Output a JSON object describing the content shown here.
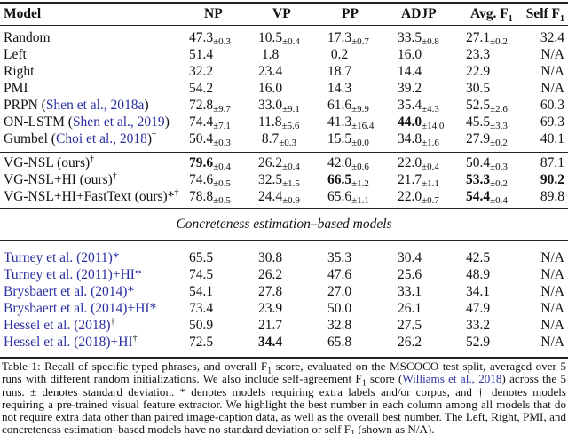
{
  "table": {
    "headers": [
      "Model",
      "NP",
      "VP",
      "PP",
      "ADJP",
      "Avg. F",
      "Self F"
    ],
    "header_sub": "1",
    "groups": [
      [
        {
          "name": "Random",
          "cite": "",
          "after": "",
          "sup": "",
          "cells": [
            {
              "v": "47.3",
              "sd": "±0.3"
            },
            {
              "v": "10.5",
              "sd": "±0.4"
            },
            {
              "v": "17.3",
              "sd": "±0.7"
            },
            {
              "v": "33.5",
              "sd": "±0.8"
            },
            {
              "v": "27.1",
              "sd": "±0.2"
            },
            {
              "v": "32.4"
            }
          ]
        },
        {
          "name": "Left",
          "cite": "",
          "after": "",
          "sup": "",
          "cells": [
            {
              "v": "51.4"
            },
            {
              "v": " 1.8"
            },
            {
              "v": " 0.2"
            },
            {
              "v": "16.0"
            },
            {
              "v": "23.3"
            },
            {
              "v": "N/A"
            }
          ]
        },
        {
          "name": "Right",
          "cite": "",
          "after": "",
          "sup": "",
          "cells": [
            {
              "v": "32.2"
            },
            {
              "v": "23.4"
            },
            {
              "v": "18.7"
            },
            {
              "v": "14.4"
            },
            {
              "v": "22.9"
            },
            {
              "v": "N/A"
            }
          ]
        },
        {
          "name": "PMI",
          "cite": "",
          "after": "",
          "sup": "",
          "cells": [
            {
              "v": "54.2"
            },
            {
              "v": "16.0"
            },
            {
              "v": "14.3"
            },
            {
              "v": "39.2"
            },
            {
              "v": "30.5"
            },
            {
              "v": "N/A"
            }
          ]
        },
        {
          "name": "PRPN (",
          "cite": "Shen et al., 2018a",
          "after": ")",
          "sup": "",
          "cells": [
            {
              "v": "72.8",
              "sd": "±9.7"
            },
            {
              "v": "33.0",
              "sd": "±9.1"
            },
            {
              "v": "61.6",
              "sd": "±9.9"
            },
            {
              "v": "35.4",
              "sd": "±4.3"
            },
            {
              "v": "52.5",
              "sd": "±2.6"
            },
            {
              "v": "60.3"
            }
          ]
        },
        {
          "name": "ON-LSTM (",
          "cite": "Shen et al., 2019",
          "after": ")",
          "sup": "",
          "cells": [
            {
              "v": "74.4",
              "sd": "±7.1"
            },
            {
              "v": "11.8",
              "sd": "±5.6"
            },
            {
              "v": "41.3",
              "sd": "±16.4"
            },
            {
              "v": "44.0",
              "sd": "±14.0",
              "bold": true
            },
            {
              "v": "45.5",
              "sd": "±3.3"
            },
            {
              "v": "69.3"
            }
          ]
        },
        {
          "name": "Gumbel (",
          "cite": "Choi et al., 2018",
          "after": ")",
          "sup": "†",
          "cells": [
            {
              "v": "50.4",
              "sd": "±0.3"
            },
            {
              "v": " 8.7",
              "sd": "±0.3"
            },
            {
              "v": "15.5",
              "sd": "±0.0"
            },
            {
              "v": "34.8",
              "sd": "±1.6"
            },
            {
              "v": "27.9",
              "sd": "±0.2"
            },
            {
              "v": "40.1"
            }
          ]
        }
      ],
      [
        {
          "name": "VG-NSL (ours)",
          "cite": "",
          "after": "",
          "sup": "†",
          "cells": [
            {
              "v": "79.6",
              "sd": "±0.4",
              "bold": true
            },
            {
              "v": "26.2",
              "sd": "±0.4"
            },
            {
              "v": "42.0",
              "sd": "±0.6"
            },
            {
              "v": "22.0",
              "sd": "±0.4"
            },
            {
              "v": "50.4",
              "sd": "±0.3"
            },
            {
              "v": "87.1"
            }
          ]
        },
        {
          "name": "VG-NSL+HI (ours)",
          "cite": "",
          "after": "",
          "sup": "†",
          "cells": [
            {
              "v": "74.6",
              "sd": "±0.5"
            },
            {
              "v": "32.5",
              "sd": "±1.5"
            },
            {
              "v": "66.5",
              "sd": "±1.2",
              "bold": true
            },
            {
              "v": "21.7",
              "sd": "±1.1"
            },
            {
              "v": "53.3",
              "sd": "±0.2",
              "bold": true
            },
            {
              "v": "90.2",
              "bold": true
            }
          ]
        },
        {
          "name": "VG-NSL+HI+FastText (ours)*",
          "cite": "",
          "after": "",
          "sup": "†",
          "cells": [
            {
              "v": "78.8",
              "sd": "±0.5"
            },
            {
              "v": "24.4",
              "sd": "±0.9"
            },
            {
              "v": "65.6",
              "sd": "±1.1"
            },
            {
              "v": "22.0",
              "sd": "±0.7"
            },
            {
              "v": "54.4",
              "sd": "±0.4",
              "bold": true
            },
            {
              "v": "89.8"
            }
          ]
        }
      ],
      [
        {
          "name": "",
          "cite": "Turney et al. (2011)*",
          "after": "",
          "sup": "",
          "cells": [
            {
              "v": "65.5"
            },
            {
              "v": "30.8"
            },
            {
              "v": "35.3"
            },
            {
              "v": "30.4"
            },
            {
              "v": "42.5"
            },
            {
              "v": "N/A"
            }
          ]
        },
        {
          "name": "",
          "cite": "Turney et al. (2011)+HI*",
          "after": "",
          "sup": "",
          "cells": [
            {
              "v": "74.5"
            },
            {
              "v": "26.2"
            },
            {
              "v": "47.6"
            },
            {
              "v": "25.6"
            },
            {
              "v": "48.9"
            },
            {
              "v": "N/A"
            }
          ]
        },
        {
          "name": "",
          "cite": "Brysbaert et al. (2014)*",
          "after": "",
          "sup": "",
          "cells": [
            {
              "v": "54.1"
            },
            {
              "v": "27.8"
            },
            {
              "v": "27.0"
            },
            {
              "v": "33.1"
            },
            {
              "v": "34.1"
            },
            {
              "v": "N/A"
            }
          ]
        },
        {
          "name": "",
          "cite": "Brysbaert et al. (2014)+HI*",
          "after": "",
          "sup": "",
          "cells": [
            {
              "v": "73.4"
            },
            {
              "v": "23.9"
            },
            {
              "v": "50.0"
            },
            {
              "v": "26.1"
            },
            {
              "v": "47.9"
            },
            {
              "v": "N/A"
            }
          ]
        },
        {
          "name": "",
          "cite": "Hessel et al. (2018)",
          "after": "",
          "sup": "†",
          "cells": [
            {
              "v": "50.9"
            },
            {
              "v": "21.7"
            },
            {
              "v": "32.8"
            },
            {
              "v": "27.5"
            },
            {
              "v": "33.2"
            },
            {
              "v": "N/A"
            }
          ]
        },
        {
          "name": "",
          "cite": "Hessel et al. (2018)+HI",
          "after": "",
          "sup": "†",
          "cells": [
            {
              "v": "72.5"
            },
            {
              "v": "34.4",
              "bold": true
            },
            {
              "v": "65.8"
            },
            {
              "v": "26.2"
            },
            {
              "v": "52.9"
            },
            {
              "v": "N/A"
            }
          ]
        }
      ]
    ],
    "section_label": "Concreteness estimation–based models"
  },
  "caption": {
    "p1": "Table 1:  Recall of specific typed phrases, and overall F",
    "p2": " score, evaluated on the MSCOCO test split, averaged over 5 runs with different random initializations. We also include self-agreement F",
    "p3": " score (",
    "cite": "Williams et al., 2018",
    "p4": ") across the 5 runs. ± denotes standard deviation. * denotes models requiring extra labels and/or corpus, and † denotes models requiring a pre-trained visual feature extractor. We highlight the best number in each column among all models that do not require extra data other than paired image-caption data, as well as the overall best number. The Left, Right, PMI, and concreteness estimation–based models have no standard deviation or self F",
    "p5": " (shown as N/A).",
    "sub": "1"
  },
  "colors": {
    "citation": "#2a2fa0",
    "text": "#111111"
  }
}
